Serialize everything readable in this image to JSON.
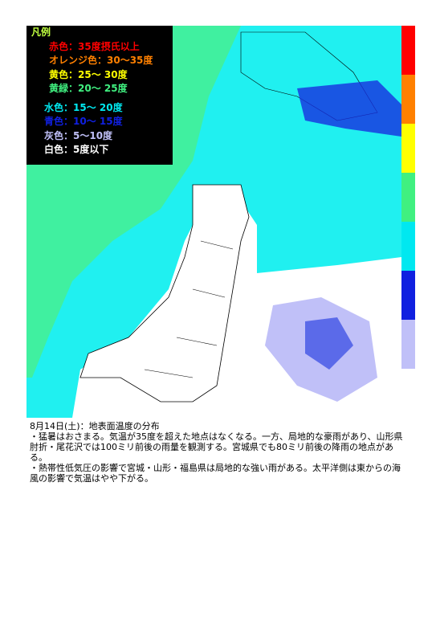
{
  "legend": {
    "title": "凡例",
    "items": [
      {
        "label": "赤色：35度摂氏以上",
        "color": "#ff0000"
      },
      {
        "label": "オレンジ色：30～35度",
        "color": "#ff8000"
      },
      {
        "label": "黄色：25～ 30度",
        "color": "#ffff00"
      },
      {
        "label": "黄緑：20～ 25度",
        "color": "#40f080"
      },
      {
        "label": "水色：15～ 20度",
        "color": "#00e8f0"
      },
      {
        "label": "青色：10～ 15度",
        "color": "#1020e0"
      },
      {
        "label": "灰色：5～10度",
        "color": "#c0c0f8"
      },
      {
        "label": "白色：5度以下",
        "color": "#ffffff"
      }
    ]
  },
  "caption": {
    "heading": "8月14日(土)：地表面温度の分布",
    "bullets": [
      "・猛暑はおさまる。気温が35度を超えた地点はなくなる。一方、局地的な豪雨があり、山形県肘折・尾花沢では100ミリ前後の雨量を観測する。宮城県でも80ミリ前後の降雨の地点がある。",
      "・熱帯性低気圧の影響で宮城・山形・福島県は局地的な強い雨がある。太平洋側は東からの海風の影響で気温はやや下がる。"
    ]
  }
}
